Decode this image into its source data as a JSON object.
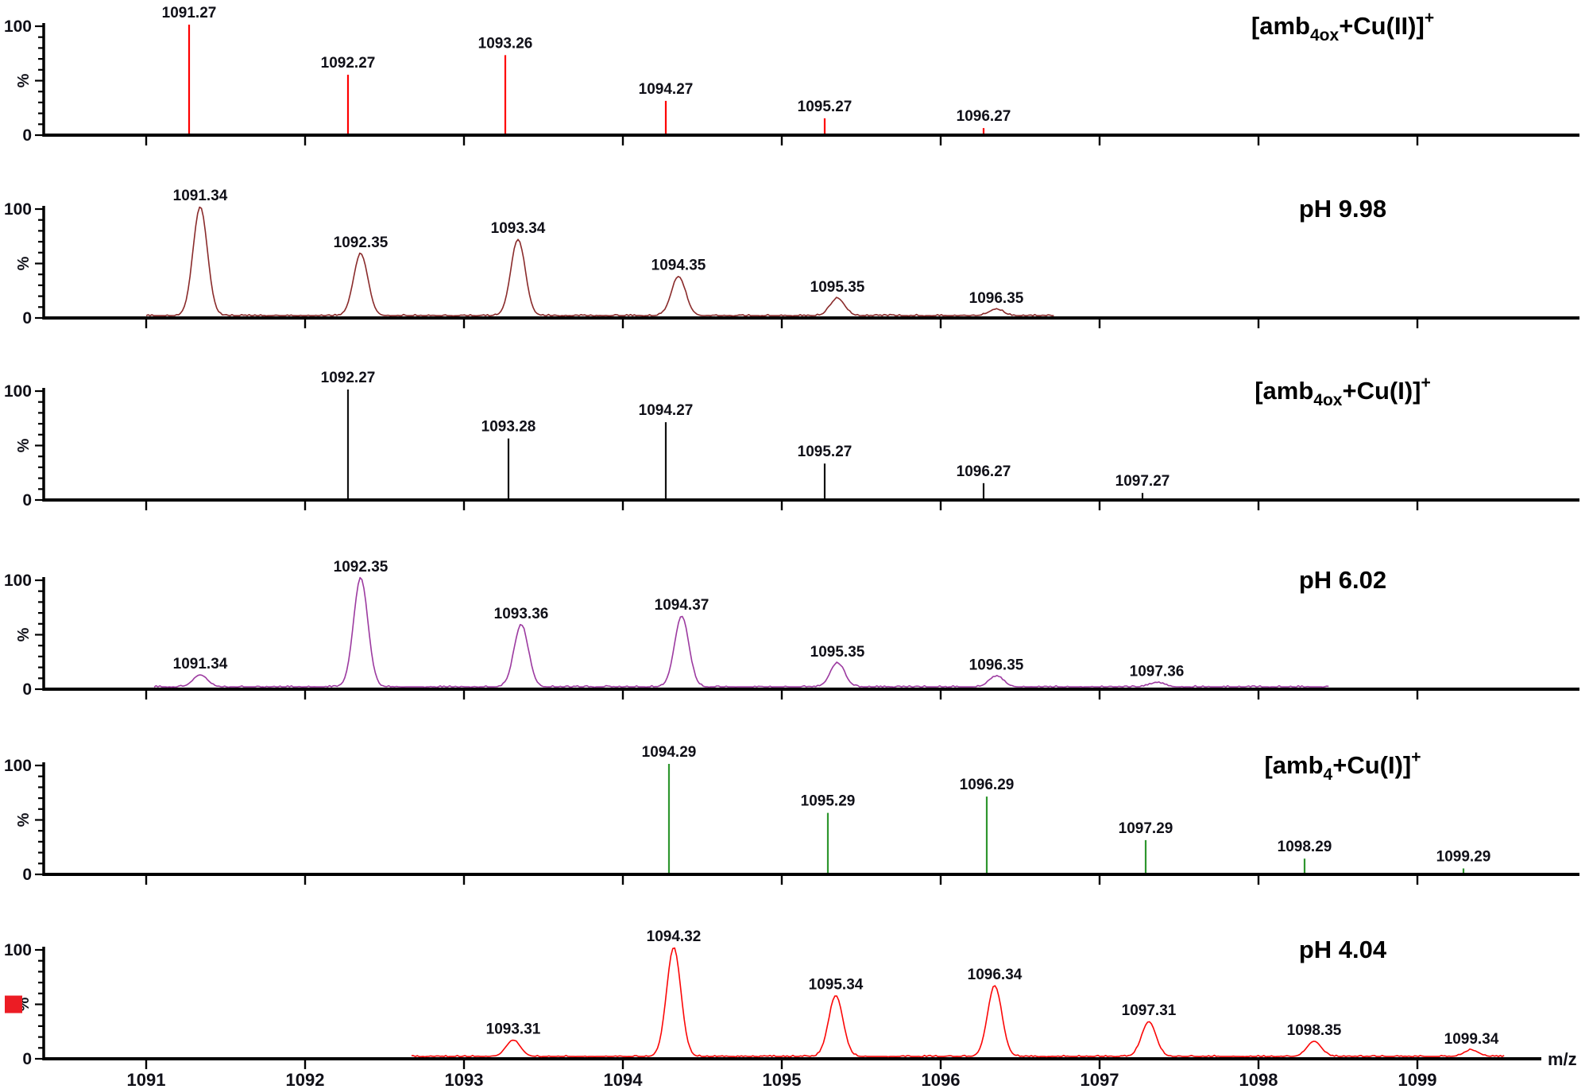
{
  "figure": {
    "background": "#ffffff",
    "text_color": "#101018",
    "axis_color": "#000000",
    "y_axis": {
      "max_label": "100",
      "min_label": "0",
      "unit_label": "%"
    },
    "x_axis": {
      "label": "m/z",
      "tick_values": [
        1091,
        1092,
        1093,
        1094,
        1095,
        1096,
        1097,
        1098,
        1099
      ],
      "tick_labels": [
        "1091",
        "1092",
        "1093",
        "1094",
        "1095",
        "1096",
        "1097",
        "1098",
        "1099"
      ],
      "range_min": 1090.35,
      "range_max": 1100.0
    }
  },
  "chart_data": [
    {
      "panel": 1,
      "type": "stick",
      "color": "#FE0000",
      "title_plain": "[amb4ox+Cu(II)]+",
      "title_segments": [
        {
          "text": "[amb"
        },
        {
          "text": "4ox",
          "script": "sub"
        },
        {
          "text": "+Cu(II)]"
        },
        {
          "text": "+",
          "script": "sup"
        }
      ],
      "ylim": [
        0,
        100
      ],
      "x": [
        1091.27,
        1092.27,
        1093.26,
        1094.27,
        1095.27,
        1096.27
      ],
      "y": [
        100,
        54,
        72,
        30,
        14,
        5
      ],
      "labels": [
        "1091.27",
        "1092.27",
        "1093.26",
        "1094.27",
        "1095.27",
        "1096.27"
      ]
    },
    {
      "panel": 2,
      "type": "line",
      "color": "#8A2B2B",
      "title_plain": "pH 9.98",
      "title_segments": [
        {
          "text": "pH 9.98"
        }
      ],
      "ylim": [
        0,
        100
      ],
      "trace_range": [
        1091.0,
        1096.72
      ],
      "x": [
        1091.34,
        1092.35,
        1093.34,
        1094.35,
        1095.35,
        1096.35
      ],
      "y": [
        100,
        57,
        70,
        36,
        16,
        6
      ],
      "labels": [
        "1091.34",
        "1092.35",
        "1093.34",
        "1094.35",
        "1095.35",
        "1096.35"
      ]
    },
    {
      "panel": 3,
      "type": "stick",
      "color": "#111111",
      "title_plain": "[amb4ox+Cu(I)]+",
      "title_segments": [
        {
          "text": "[amb"
        },
        {
          "text": "4ox",
          "script": "sub"
        },
        {
          "text": "+Cu(I)]"
        },
        {
          "text": "+",
          "script": "sup"
        }
      ],
      "ylim": [
        0,
        100
      ],
      "x": [
        1092.27,
        1093.28,
        1094.27,
        1095.27,
        1096.27,
        1097.27
      ],
      "y": [
        100,
        55,
        70,
        32,
        14,
        5
      ],
      "labels": [
        "1092.27",
        "1093.28",
        "1094.27",
        "1095.27",
        "1096.27",
        "1097.27"
      ]
    },
    {
      "panel": 4,
      "type": "line",
      "color": "#9C3AA0",
      "title_plain": "pH 6.02",
      "title_segments": [
        {
          "text": "pH 6.02"
        }
      ],
      "ylim": [
        0,
        100
      ],
      "trace_range": [
        1091.05,
        1098.45
      ],
      "x": [
        1091.34,
        1092.35,
        1093.36,
        1094.37,
        1095.35,
        1096.35,
        1097.36
      ],
      "y": [
        11,
        100,
        57,
        65,
        22,
        10,
        4
      ],
      "labels": [
        "1091.34",
        "1092.35",
        "1093.36",
        "1094.37",
        "1095.35",
        "1096.35",
        "1097.36"
      ]
    },
    {
      "panel": 5,
      "type": "stick",
      "color": "#2E962E",
      "title_plain": "[amb4+Cu(I)]+",
      "title_segments": [
        {
          "text": "[amb"
        },
        {
          "text": "4",
          "script": "sub"
        },
        {
          "text": "+Cu(I)]"
        },
        {
          "text": "+",
          "script": "sup"
        }
      ],
      "ylim": [
        0,
        100
      ],
      "x": [
        1094.29,
        1095.29,
        1096.29,
        1097.29,
        1098.29,
        1099.29
      ],
      "y": [
        100,
        55,
        70,
        30,
        13,
        4
      ],
      "labels": [
        "1094.29",
        "1095.29",
        "1096.29",
        "1097.29",
        "1098.29",
        "1099.29"
      ]
    },
    {
      "panel": 6,
      "type": "line",
      "color": "#FB0707",
      "title_plain": "pH 4.04",
      "title_segments": [
        {
          "text": "pH 4.04"
        }
      ],
      "marker": {
        "shape": "square",
        "color": "#EC1C24"
      },
      "ylim": [
        0,
        100
      ],
      "trace_range": [
        1092.67,
        1099.55
      ],
      "x": [
        1093.31,
        1094.32,
        1095.34,
        1096.34,
        1097.31,
        1098.35,
        1099.34
      ],
      "y": [
        15,
        100,
        56,
        65,
        32,
        14,
        6
      ],
      "labels": [
        "1093.31",
        "1094.32",
        "1095.34",
        "1096.34",
        "1097.31",
        "1098.35",
        "1099.34"
      ]
    }
  ]
}
